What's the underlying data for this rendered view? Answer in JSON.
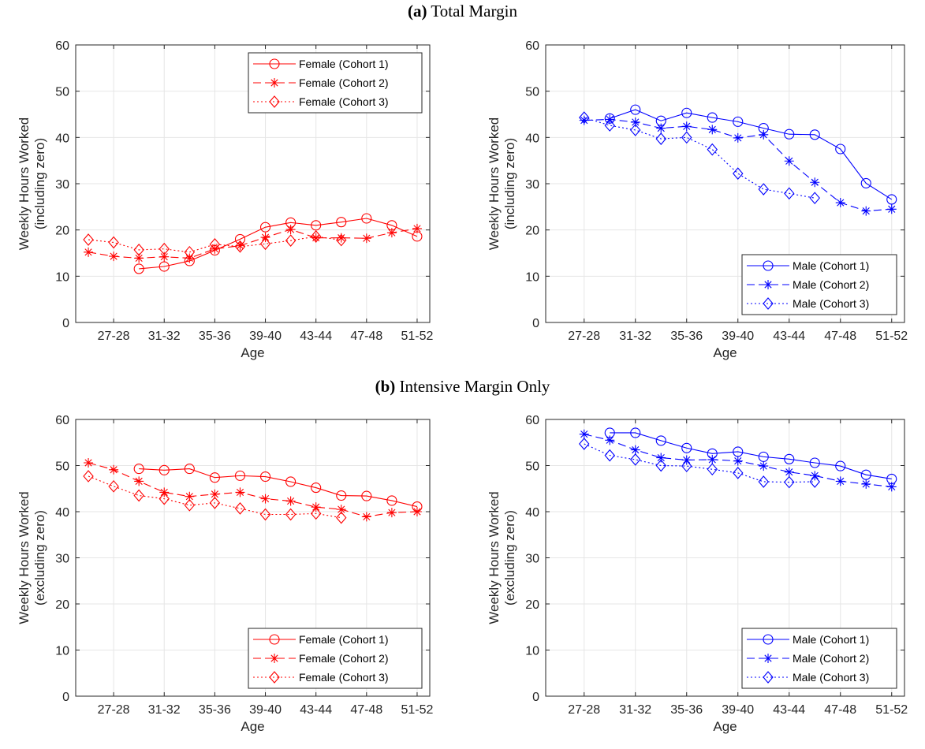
{
  "panel_titles": [
    {
      "letter": "(a)",
      "text": "Total Margin"
    },
    {
      "letter": "(b)",
      "text": "Intensive Margin Only"
    }
  ],
  "colors": {
    "female": "#ff0000",
    "male": "#0000ff",
    "grid": "#e6e6e6",
    "axis": "#262626"
  },
  "chart_data": [
    {
      "type": "line",
      "panel": "a",
      "xlabel": "Age",
      "ylabel": [
        "Weekly Hours Worked",
        "(including zero)"
      ],
      "ylim": [
        0,
        60
      ],
      "yticks": [
        0,
        10,
        20,
        30,
        40,
        50,
        60
      ],
      "xticks": [
        "27-28",
        "31-32",
        "35-36",
        "39-40",
        "43-44",
        "47-48",
        "51-52"
      ],
      "categories": [
        "25-26",
        "27-28",
        "29-30",
        "31-32",
        "33-34",
        "35-36",
        "37-38",
        "39-40",
        "41-42",
        "43-44",
        "45-46",
        "47-48",
        "49-50",
        "51-52"
      ],
      "grid": true,
      "legend_position": "top-right",
      "series": [
        {
          "name": "Female (Cohort 1)",
          "marker": "circle",
          "dash": "solid",
          "values": [
            null,
            null,
            11.6,
            12.1,
            13.3,
            15.6,
            18.0,
            20.6,
            21.6,
            21.0,
            21.7,
            22.5,
            21.0,
            18.6
          ]
        },
        {
          "name": "Female (Cohort 2)",
          "marker": "star",
          "dash": "dashed",
          "values": [
            15.2,
            14.3,
            13.9,
            14.2,
            13.9,
            15.9,
            16.6,
            18.4,
            20.1,
            18.3,
            18.3,
            18.2,
            19.4,
            20.3
          ]
        },
        {
          "name": "Female (Cohort 3)",
          "marker": "diamond",
          "dash": "dotted",
          "values": [
            17.9,
            17.3,
            15.7,
            15.9,
            15.2,
            16.9,
            16.4,
            17.0,
            17.7,
            18.6,
            17.8,
            null,
            null,
            null
          ]
        }
      ]
    },
    {
      "type": "line",
      "panel": "a",
      "xlabel": "Age",
      "ylabel": [
        "Weekly Hours Worked",
        "(including zero)"
      ],
      "ylim": [
        0,
        60
      ],
      "yticks": [
        0,
        10,
        20,
        30,
        40,
        50,
        60
      ],
      "xticks": [
        "27-28",
        "31-32",
        "35-36",
        "39-40",
        "43-44",
        "47-48",
        "51-52"
      ],
      "categories": [
        "25-26",
        "27-28",
        "29-30",
        "31-32",
        "33-34",
        "35-36",
        "37-38",
        "39-40",
        "41-42",
        "43-44",
        "45-46",
        "47-48",
        "49-50",
        "51-52"
      ],
      "grid": true,
      "legend_position": "bottom-right",
      "series": [
        {
          "name": "Male (Cohort 1)",
          "marker": "circle",
          "dash": "solid",
          "values": [
            null,
            null,
            44.1,
            46.0,
            43.6,
            45.3,
            44.3,
            43.4,
            42.0,
            40.7,
            40.6,
            37.5,
            30.1,
            26.6
          ]
        },
        {
          "name": "Male (Cohort 2)",
          "marker": "star",
          "dash": "dashed",
          "values": [
            null,
            43.7,
            43.9,
            43.3,
            42.0,
            42.4,
            41.7,
            39.9,
            40.6,
            34.9,
            30.3,
            25.9,
            24.1,
            24.5
          ]
        },
        {
          "name": "Male (Cohort 3)",
          "marker": "diamond",
          "dash": "dotted",
          "values": [
            null,
            44.3,
            42.6,
            41.6,
            39.7,
            40.0,
            37.4,
            32.2,
            28.8,
            27.9,
            26.9,
            null,
            null,
            null
          ]
        }
      ]
    },
    {
      "type": "line",
      "panel": "b",
      "xlabel": "Age",
      "ylabel": [
        "Weekly Hours Worked",
        "(excluding zero)"
      ],
      "ylim": [
        0,
        60
      ],
      "yticks": [
        0,
        10,
        20,
        30,
        40,
        50,
        60
      ],
      "xticks": [
        "27-28",
        "31-32",
        "35-36",
        "39-40",
        "43-44",
        "47-48",
        "51-52"
      ],
      "categories": [
        "25-26",
        "27-28",
        "29-30",
        "31-32",
        "33-34",
        "35-36",
        "37-38",
        "39-40",
        "41-42",
        "43-44",
        "45-46",
        "47-48",
        "49-50",
        "51-52"
      ],
      "grid": true,
      "legend_position": "bottom-right",
      "series": [
        {
          "name": "Female (Cohort 1)",
          "marker": "circle",
          "dash": "solid",
          "values": [
            null,
            null,
            49.3,
            49.0,
            49.3,
            47.4,
            47.8,
            47.6,
            46.5,
            45.2,
            43.5,
            43.4,
            42.4,
            41.1
          ]
        },
        {
          "name": "Female (Cohort 2)",
          "marker": "star",
          "dash": "dashed",
          "values": [
            50.6,
            49.1,
            46.6,
            44.2,
            43.3,
            43.8,
            44.2,
            42.8,
            42.3,
            41.0,
            40.5,
            38.9,
            39.8,
            40.0
          ]
        },
        {
          "name": "Female (Cohort 3)",
          "marker": "diamond",
          "dash": "dotted",
          "values": [
            47.7,
            45.5,
            43.5,
            42.8,
            41.4,
            41.9,
            40.7,
            39.4,
            39.4,
            39.6,
            38.7,
            null,
            null,
            null
          ]
        }
      ]
    },
    {
      "type": "line",
      "panel": "b",
      "xlabel": "Age",
      "ylabel": [
        "Weekly Hours Worked",
        "(excluding zero)"
      ],
      "ylim": [
        0,
        60
      ],
      "yticks": [
        0,
        10,
        20,
        30,
        40,
        50,
        60
      ],
      "xticks": [
        "27-28",
        "31-32",
        "35-36",
        "39-40",
        "43-44",
        "47-48",
        "51-52"
      ],
      "categories": [
        "25-26",
        "27-28",
        "29-30",
        "31-32",
        "33-34",
        "35-36",
        "37-38",
        "39-40",
        "41-42",
        "43-44",
        "45-46",
        "47-48",
        "49-50",
        "51-52"
      ],
      "grid": true,
      "legend_position": "bottom-right",
      "series": [
        {
          "name": "Male (Cohort 1)",
          "marker": "circle",
          "dash": "solid",
          "values": [
            null,
            null,
            57.1,
            57.1,
            55.4,
            53.8,
            52.6,
            53.0,
            51.9,
            51.4,
            50.6,
            49.9,
            48.0,
            47.1
          ]
        },
        {
          "name": "Male (Cohort 2)",
          "marker": "star",
          "dash": "dashed",
          "values": [
            null,
            56.8,
            55.5,
            53.4,
            51.7,
            51.2,
            51.3,
            51.0,
            49.9,
            48.6,
            47.8,
            46.6,
            46.0,
            45.4
          ]
        },
        {
          "name": "Male (Cohort 3)",
          "marker": "diamond",
          "dash": "dotted",
          "values": [
            null,
            54.7,
            52.2,
            51.3,
            50.0,
            49.9,
            49.2,
            48.4,
            46.5,
            46.4,
            46.5,
            null,
            null,
            null
          ]
        }
      ]
    }
  ]
}
